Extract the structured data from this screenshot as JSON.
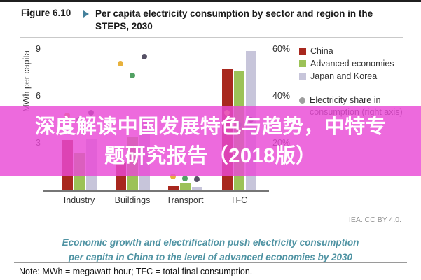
{
  "header": {
    "figure_label": "Figure 6.10",
    "title_line1": "Per capita electricity consumption by sector and region in the",
    "title_line2": "STEPS, 2030"
  },
  "chart_data": {
    "type": "bar",
    "title": "Per capita electricity consumption by sector and region in the STEPS, 2030",
    "categories": [
      "Industry",
      "Buildings",
      "Transport",
      "TFC"
    ],
    "ylabel": "MWh per capita",
    "left_axis": {
      "ticks": [
        9,
        6,
        3
      ],
      "lim": [
        0,
        9.6
      ],
      "unit": "MWh per capita"
    },
    "right_axis": {
      "ticks": [
        "60%",
        "40%",
        "20%"
      ],
      "tick_values": [
        60,
        40,
        20
      ],
      "lim": [
        0,
        64
      ]
    },
    "grid": "dotted horizontal gridlines",
    "legend_position": "right",
    "series": [
      {
        "name": "China",
        "color": "#a8281e",
        "dot_color": "#e7b13c",
        "values": [
          3.2,
          1.8,
          0.33,
          7.8
        ],
        "share_pct": [
          32,
          54,
          6,
          33
        ]
      },
      {
        "name": "Advanced economies",
        "color": "#9cc257",
        "dot_color": "#52a163",
        "values": [
          2.4,
          3.4,
          0.43,
          7.65
        ],
        "share_pct": [
          30,
          49,
          5,
          28
        ]
      },
      {
        "name": "Japan and Korea",
        "color": "#c7c5da",
        "dot_color": "#565165",
        "values": [
          3.3,
          4.8,
          0.21,
          8.9
        ],
        "share_pct": [
          33,
          57,
          4.7,
          30
        ]
      }
    ],
    "share_series_note": "Electricity share in consumption plotted as dots on right axis"
  },
  "legend": {
    "share_label_line1": "Electricity share in",
    "share_label_line2": "consumption (right axis)",
    "share_marker_color": "#9e9e9e"
  },
  "overlay": {
    "line1": "深度解读中国发展特色与趋势，中特专",
    "line2": "题研究报告（2018版）",
    "color": "#e849d5"
  },
  "attribution": "IEA. CC BY 4.0.",
  "caption": {
    "line1": "Economic growth and electrification push electricity consumption",
    "line2": "per capita in China to the level of advanced economies by 2030"
  },
  "note": "Note: MWh = megawatt-hour; TFC = total final consumption."
}
